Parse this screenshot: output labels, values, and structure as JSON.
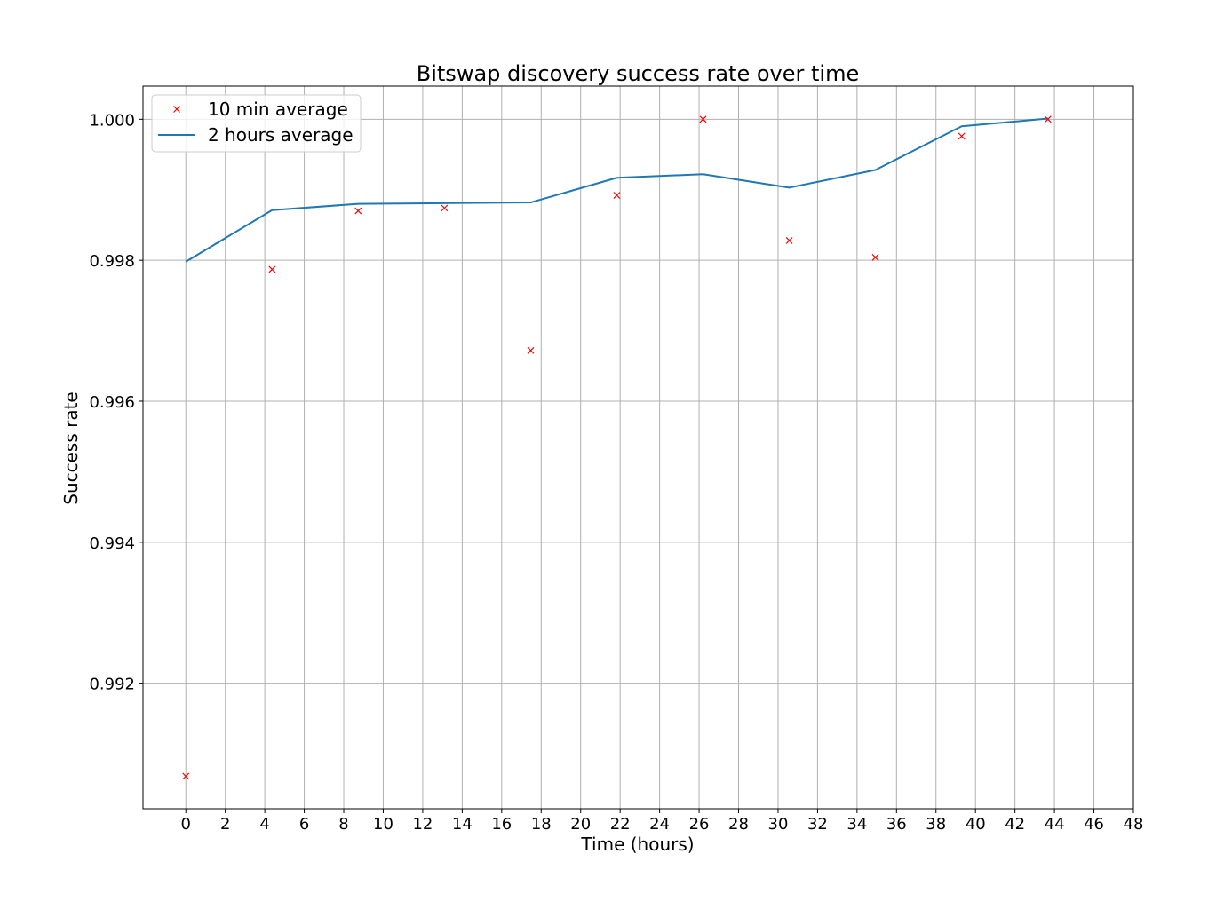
{
  "chart_data": {
    "type": "line",
    "title": "Bitswap discovery success rate over time",
    "xlabel": "Time (hours)",
    "ylabel": "Success rate",
    "xlim": [
      -2.17,
      48.0
    ],
    "ylim": [
      0.99022,
      1.00047
    ],
    "xticks": [
      0,
      2,
      4,
      6,
      8,
      10,
      12,
      14,
      16,
      18,
      20,
      22,
      24,
      26,
      28,
      30,
      32,
      34,
      36,
      38,
      40,
      42,
      44,
      46,
      48
    ],
    "xtick_labels": [
      "0",
      "2",
      "4",
      "6",
      "8",
      "10",
      "12",
      "14",
      "16",
      "18",
      "20",
      "22",
      "24",
      "26",
      "28",
      "30",
      "32",
      "34",
      "36",
      "38",
      "40",
      "42",
      "44",
      "46",
      "48"
    ],
    "yticks": [
      0.992,
      0.994,
      0.996,
      0.998,
      1.0
    ],
    "ytick_labels": [
      "0.992",
      "0.994",
      "0.996",
      "0.998",
      "1.000"
    ],
    "grid": true,
    "legend_position": "top-left",
    "series": [
      {
        "name": "10 min average",
        "style": "marker-x",
        "color": "#ff0000",
        "x": [
          0.0,
          4.37,
          8.73,
          13.1,
          17.47,
          21.83,
          26.2,
          30.57,
          34.93,
          39.3,
          43.67
        ],
        "y": [
          0.99068,
          0.99787,
          0.9987,
          0.99874,
          0.99672,
          0.99892,
          1.0,
          0.99828,
          0.99804,
          0.99976,
          1.0
        ]
      },
      {
        "name": "2 hours average",
        "style": "line",
        "color": "#1f77b4",
        "x": [
          0.0,
          4.37,
          8.73,
          13.1,
          17.47,
          21.83,
          26.2,
          30.57,
          34.93,
          39.3,
          43.67
        ],
        "y": [
          0.99798,
          0.99871,
          0.9988,
          0.99881,
          0.99882,
          0.99917,
          0.99922,
          0.99903,
          0.99928,
          0.9999,
          1.00001
        ]
      }
    ]
  }
}
